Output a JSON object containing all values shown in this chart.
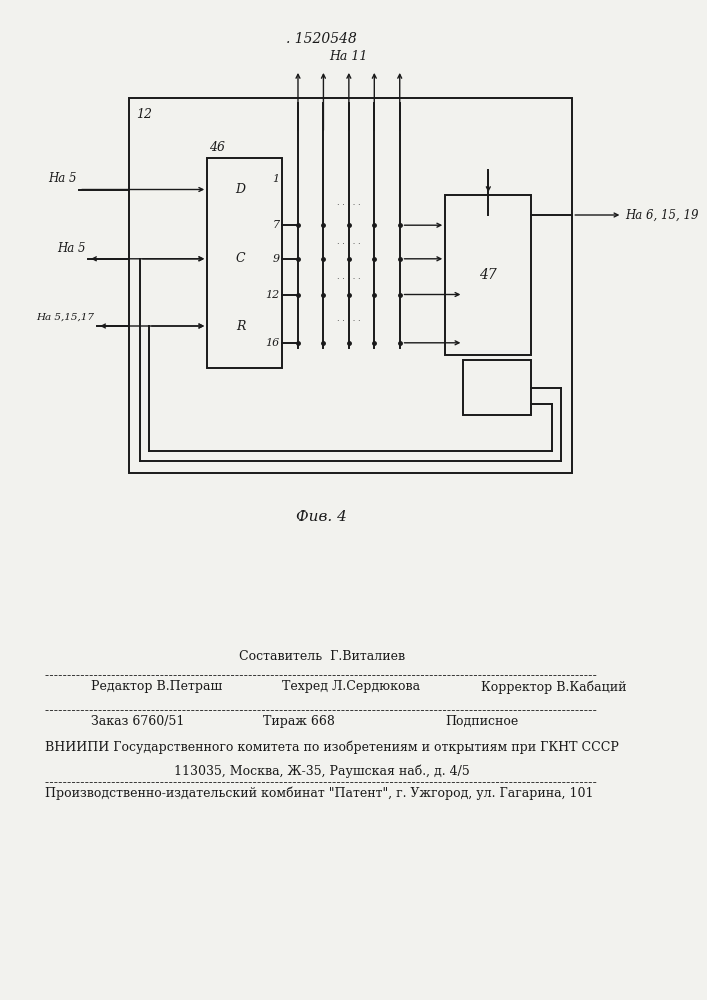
{
  "patent_number": ". 1520548",
  "fig_label": "Фив. 4",
  "bg_color": "#f2f2ee",
  "line_color": "#1a1a1a",
  "text_color": "#1a1a1a",
  "footer_composer": "Составитель  Г.Виталиев",
  "footer_editor": "Редактор В.Петраш",
  "footer_techred": "Техред Л.Сердюкова",
  "footer_corrector": "Корректор В.Кабаций",
  "footer_zakaz": "Заказ 6760/51",
  "footer_tirazh": "Тираж 668",
  "footer_podpisnoe": "Подписное",
  "footer_vniip1": "ВНИИПИ Государственного комитета по изобретениям и открытиям при ГКНТ СССР",
  "footer_vniip2": "113035, Москва, Ж-35, Раушская наб., д. 4/5",
  "footer_proizv": "Производственно-издательский комбинат \"Патент\", г. Ужгород, ул. Гагарина, 101"
}
